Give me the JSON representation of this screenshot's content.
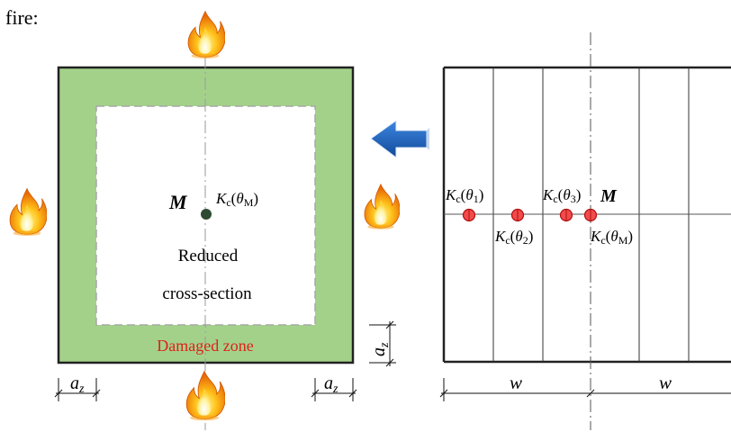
{
  "caption_prefix": "fire:",
  "left_panel": {
    "point_label": "M",
    "point_k": "K",
    "point_k_sub": "c",
    "point_k_arg": "θ",
    "point_k_arg_sub": "M",
    "reduced_line1": "Reduced",
    "reduced_line2": "cross-section",
    "damaged_zone": "Damaged zone",
    "dim_left_base": "a",
    "dim_left_sub": "z",
    "dim_right_base": "a",
    "dim_right_sub": "z",
    "dim_vertical_base": "a",
    "dim_vertical_sub": "z",
    "colors": {
      "damaged_fill": "#a3d18a",
      "damaged_label": "#e0201a",
      "point": "#2e4a33"
    }
  },
  "arrow": {
    "color": "#1f5fb5",
    "icon": "arrow-left-icon"
  },
  "right_panel": {
    "point_label": "M",
    "labels": [
      {
        "k": "K",
        "sub": "c",
        "arg": "θ",
        "arg_sub": "1"
      },
      {
        "k": "K",
        "sub": "c",
        "arg": "θ",
        "arg_sub": "2"
      },
      {
        "k": "K",
        "sub": "c",
        "arg": "θ",
        "arg_sub": "3"
      },
      {
        "k": "K",
        "sub": "c",
        "arg": "θ",
        "arg_sub": "M"
      }
    ],
    "dim_w_left": "w",
    "dim_w_right": "w",
    "colors": {
      "point_fill": "#f24b4b",
      "point_stroke": "#b01010"
    }
  },
  "icons": [
    "flame-icon-top",
    "flame-icon-bottom",
    "flame-icon-left",
    "flame-icon-right"
  ]
}
